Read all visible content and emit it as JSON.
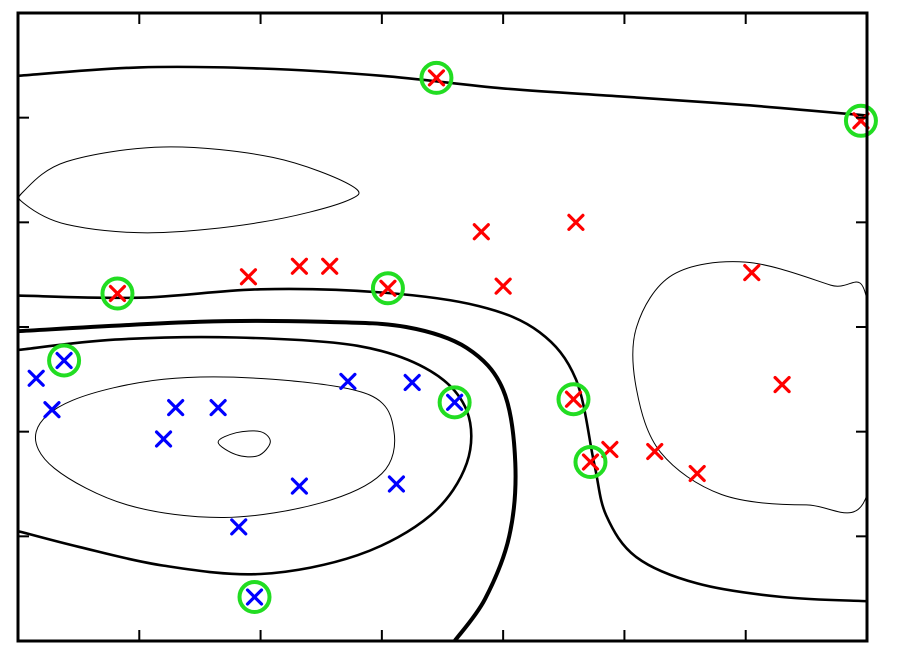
{
  "chart_data": {
    "type": "scatter",
    "title": "",
    "xlabel": "",
    "ylabel": "",
    "xlim": [
      0,
      7
    ],
    "ylim": [
      0,
      6
    ],
    "grid": false,
    "legend": "none",
    "x_ticks": [
      1,
      2,
      3,
      4,
      5,
      6
    ],
    "y_ticks": [
      1,
      2,
      3,
      4,
      5
    ],
    "series": [
      {
        "marker": "x",
        "color": "#ff0000",
        "points": [
          [
            3.45,
            5.38
          ],
          [
            6.95,
            4.97
          ],
          [
            0.82,
            3.32
          ],
          [
            1.9,
            3.48
          ],
          [
            2.32,
            3.58
          ],
          [
            2.57,
            3.58
          ],
          [
            3.05,
            3.37
          ],
          [
            3.82,
            3.91
          ],
          [
            4.0,
            3.39
          ],
          [
            4.6,
            4.0
          ],
          [
            6.05,
            3.52
          ],
          [
            6.3,
            2.45
          ],
          [
            4.58,
            2.31
          ],
          [
            4.72,
            1.71
          ],
          [
            4.88,
            1.83
          ],
          [
            5.25,
            1.81
          ],
          [
            5.6,
            1.6
          ]
        ]
      },
      {
        "marker": "x",
        "color": "#0000ff",
        "points": [
          [
            0.38,
            2.68
          ],
          [
            0.15,
            2.51
          ],
          [
            0.28,
            2.21
          ],
          [
            1.2,
            1.93
          ],
          [
            1.3,
            2.23
          ],
          [
            1.65,
            2.23
          ],
          [
            2.72,
            2.48
          ],
          [
            3.25,
            2.47
          ],
          [
            3.6,
            2.28
          ],
          [
            1.82,
            1.09
          ],
          [
            2.32,
            1.48
          ],
          [
            3.12,
            1.5
          ],
          [
            1.95,
            0.42
          ]
        ]
      }
    ],
    "support_vectors": {
      "marker": "circle",
      "color": "#22dd22",
      "points": [
        [
          3.45,
          5.38
        ],
        [
          6.95,
          4.97
        ],
        [
          0.82,
          3.32
        ],
        [
          3.05,
          3.37
        ],
        [
          0.38,
          2.68
        ],
        [
          3.6,
          2.28
        ],
        [
          4.58,
          2.31
        ],
        [
          4.72,
          1.71
        ],
        [
          1.95,
          0.42
        ]
      ]
    },
    "contours": [
      {
        "level": "boundary",
        "weight": "bold",
        "points": [
          [
            0,
            2.96
          ],
          [
            1.5,
            3.05
          ],
          [
            2.5,
            3.05
          ],
          [
            3.2,
            3.0
          ],
          [
            3.7,
            2.8
          ],
          [
            4.0,
            2.4
          ],
          [
            4.1,
            1.7
          ],
          [
            4.05,
            1.0
          ],
          [
            3.85,
            0.4
          ],
          [
            3.6,
            0
          ]
        ]
      },
      {
        "level": "margin",
        "weight": "medium",
        "points": [
          [
            0,
            5.4
          ],
          [
            1.0,
            5.48
          ],
          [
            2.0,
            5.47
          ],
          [
            3.0,
            5.4
          ],
          [
            4.0,
            5.28
          ],
          [
            5.0,
            5.2
          ],
          [
            6.0,
            5.12
          ],
          [
            7.0,
            5.02
          ]
        ]
      },
      {
        "level": "margin",
        "weight": "medium",
        "points": [
          [
            0,
            3.3
          ],
          [
            1.0,
            3.28
          ],
          [
            2.0,
            3.36
          ],
          [
            3.0,
            3.33
          ],
          [
            3.8,
            3.2
          ],
          [
            4.3,
            2.95
          ],
          [
            4.6,
            2.5
          ],
          [
            4.75,
            1.7
          ],
          [
            4.85,
            1.2
          ],
          [
            5.1,
            0.8
          ],
          [
            5.6,
            0.55
          ],
          [
            6.3,
            0.42
          ],
          [
            7.0,
            0.38
          ]
        ]
      },
      {
        "level": "margin",
        "weight": "medium",
        "points": [
          [
            0,
            2.78
          ],
          [
            0.8,
            2.88
          ],
          [
            1.8,
            2.9
          ],
          [
            2.8,
            2.82
          ],
          [
            3.4,
            2.58
          ],
          [
            3.7,
            2.2
          ],
          [
            3.7,
            1.7
          ],
          [
            3.4,
            1.2
          ],
          [
            2.8,
            0.82
          ],
          [
            2.0,
            0.64
          ],
          [
            1.2,
            0.72
          ],
          [
            0.5,
            0.9
          ],
          [
            0,
            1.05
          ]
        ]
      },
      {
        "level": "inner",
        "weight": "thin",
        "closed": true,
        "points": [
          [
            0.05,
            4.3
          ],
          [
            0.4,
            4.58
          ],
          [
            1.2,
            4.72
          ],
          [
            2.1,
            4.62
          ],
          [
            2.75,
            4.35
          ],
          [
            2.7,
            4.2
          ],
          [
            2.0,
            4.0
          ],
          [
            1.1,
            3.9
          ],
          [
            0.4,
            3.98
          ],
          [
            0.05,
            4.18
          ]
        ]
      },
      {
        "level": "inner",
        "weight": "thin",
        "closed": true,
        "points": [
          [
            0.15,
            2.0
          ],
          [
            0.45,
            2.3
          ],
          [
            1.2,
            2.5
          ],
          [
            2.1,
            2.5
          ],
          [
            2.9,
            2.35
          ],
          [
            3.1,
            2.0
          ],
          [
            3.0,
            1.6
          ],
          [
            2.5,
            1.32
          ],
          [
            1.7,
            1.18
          ],
          [
            0.9,
            1.3
          ],
          [
            0.3,
            1.65
          ]
        ]
      },
      {
        "level": "inner",
        "weight": "thin",
        "closed": true,
        "points": [
          [
            1.65,
            1.9
          ],
          [
            1.8,
            1.99
          ],
          [
            2.0,
            2.0
          ],
          [
            2.08,
            1.9
          ],
          [
            1.98,
            1.77
          ],
          [
            1.8,
            1.78
          ]
        ]
      },
      {
        "level": "inner",
        "weight": "thin",
        "closed": true,
        "points": [
          [
            5.1,
            3.0
          ],
          [
            5.4,
            3.5
          ],
          [
            6.0,
            3.62
          ],
          [
            6.7,
            3.4
          ],
          [
            7.0,
            3.25
          ],
          [
            7.0,
            1.4
          ],
          [
            6.5,
            1.3
          ],
          [
            5.8,
            1.4
          ],
          [
            5.3,
            1.8
          ],
          [
            5.1,
            2.4
          ]
        ]
      }
    ]
  }
}
